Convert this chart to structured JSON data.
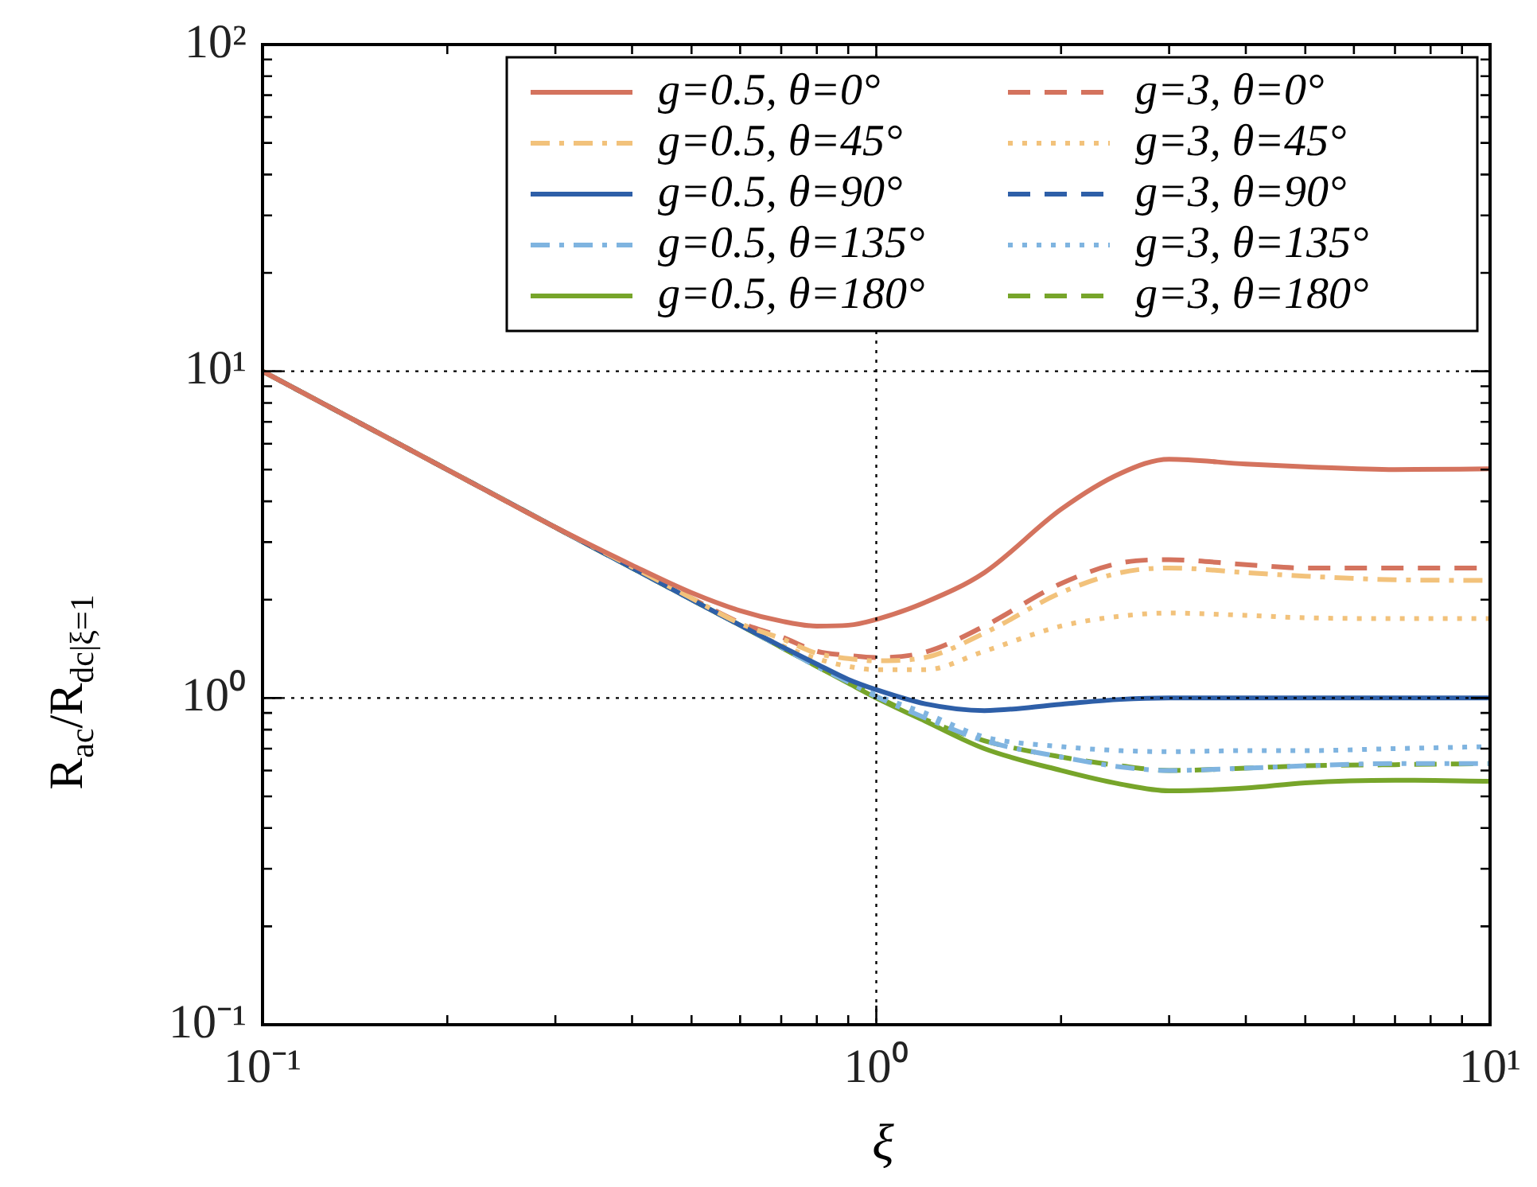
{
  "chart_data": {
    "type": "line",
    "xlabel": "ξ",
    "ylabel": "R$_{ac}$/R$_{dc|ξ=1}$",
    "log": "xy",
    "grid": true,
    "legend": "top right",
    "marker": "none",
    "x": [
      0.1,
      0.2,
      0.3,
      0.4,
      0.5,
      0.6,
      0.7,
      0.8,
      0.9,
      1,
      1.2,
      1.5,
      2,
      2.5,
      3,
      4,
      5,
      7,
      10
    ],
    "xlim": [
      0.1,
      10
    ],
    "xticks": [
      {
        "value": 0.1,
        "label": "10⁻¹"
      },
      {
        "value": 1,
        "label": "10⁰"
      },
      {
        "value": 10,
        "label": "10¹"
      }
    ],
    "ylim": [
      0.1,
      100
    ],
    "yticks": [
      {
        "value": 0.1,
        "label": "10⁻¹"
      },
      {
        "value": 1,
        "label": "10⁰"
      },
      {
        "value": 10,
        "label": "10¹"
      },
      {
        "value": 100,
        "label": "10²"
      }
    ],
    "series": [
      {
        "name": "g=0.5, θ=0°",
        "color": "#d4735e",
        "line_style": "solid",
        "values": [
          10,
          5,
          3.33,
          2.55,
          2.1,
          1.85,
          1.72,
          1.66,
          1.67,
          1.74,
          1.96,
          2.42,
          3.78,
          4.87,
          5.38,
          5.2,
          5.1,
          5.0,
          5.03
        ]
      },
      {
        "name": "g=0.5, θ=45°",
        "color": "#f2c27b",
        "line_style": "dashdot",
        "values": [
          10,
          5,
          3.33,
          2.52,
          2.02,
          1.69,
          1.52,
          1.37,
          1.32,
          1.3,
          1.33,
          1.58,
          2.1,
          2.42,
          2.5,
          2.42,
          2.36,
          2.3,
          2.29
        ]
      },
      {
        "name": "g=0.5, θ=90°",
        "color": "#2e5fa8",
        "line_style": "solid",
        "values": [
          10,
          5,
          3.33,
          2.5,
          2,
          1.67,
          1.44,
          1.27,
          1.14,
          1.06,
          0.96,
          0.915,
          0.957,
          0.99,
          1.0,
          1.0,
          1.0,
          1.0,
          1.0
        ]
      },
      {
        "name": "g=0.5, θ=135°",
        "color": "#7fb4e0",
        "line_style": "dashdot",
        "values": [
          10,
          5,
          3.33,
          2.5,
          2,
          1.67,
          1.43,
          1.25,
          1.12,
          1.01,
          0.87,
          0.74,
          0.66,
          0.615,
          0.6,
          0.61,
          0.62,
          0.63,
          0.63
        ]
      },
      {
        "name": "g=0.5, θ=180°",
        "color": "#77a52a",
        "line_style": "solid",
        "values": [
          10,
          5,
          3.33,
          2.5,
          2,
          1.67,
          1.43,
          1.25,
          1.11,
          1.0,
          0.85,
          0.7,
          0.6,
          0.545,
          0.52,
          0.53,
          0.55,
          0.56,
          0.556
        ]
      },
      {
        "name": "g=3, θ=0°",
        "color": "#d4735e",
        "line_style": "dashed",
        "values": [
          10,
          5,
          3.33,
          2.52,
          2.02,
          1.7,
          1.54,
          1.39,
          1.35,
          1.33,
          1.38,
          1.66,
          2.24,
          2.59,
          2.65,
          2.56,
          2.5,
          2.5,
          2.5
        ]
      },
      {
        "name": "g=3, θ=45°",
        "color": "#f2c27b",
        "line_style": "dotted",
        "values": [
          10,
          5,
          3.33,
          2.51,
          2.01,
          1.67,
          1.45,
          1.32,
          1.25,
          1.22,
          1.22,
          1.39,
          1.66,
          1.78,
          1.82,
          1.79,
          1.76,
          1.75,
          1.75
        ]
      },
      {
        "name": "g=3, θ=90°",
        "color": "#2e5fa8",
        "line_style": "dashed",
        "values": [
          null,
          null,
          null,
          null,
          null,
          null,
          null,
          null,
          null,
          null,
          null,
          null,
          null,
          null,
          null,
          null,
          null,
          null,
          null
        ]
      },
      {
        "name": "g=3, θ=135°",
        "color": "#7fb4e0",
        "line_style": "dotted",
        "values": [
          10,
          5,
          3.33,
          2.5,
          2,
          1.67,
          1.43,
          1.25,
          1.12,
          1.02,
          0.9,
          0.76,
          0.71,
          0.69,
          0.685,
          0.69,
          0.69,
          0.7,
          0.71
        ]
      },
      {
        "name": "g=3, θ=180°",
        "color": "#77a52a",
        "line_style": "dashed",
        "values": [
          10,
          5,
          3.33,
          2.5,
          2,
          1.67,
          1.43,
          1.25,
          1.12,
          1.01,
          0.86,
          0.74,
          0.66,
          0.62,
          0.6,
          0.61,
          0.62,
          0.625,
          0.63
        ]
      }
    ]
  }
}
